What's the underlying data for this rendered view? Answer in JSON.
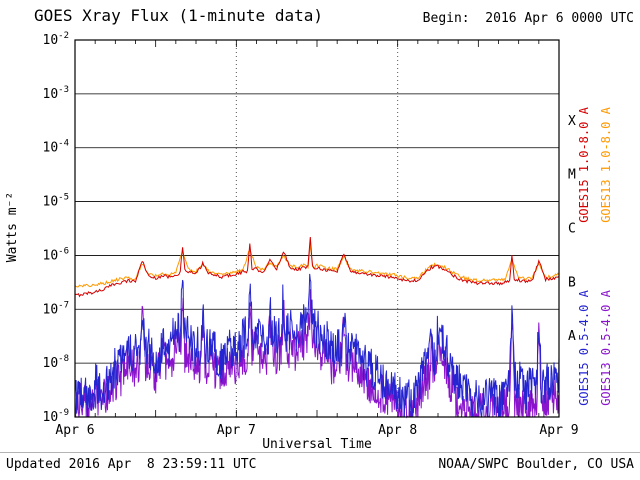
{
  "header": {
    "title": "GOES Xray Flux (1-minute data)",
    "begin_label": "Begin:  2016 Apr 6 0000 UTC"
  },
  "footer": {
    "updated": "Updated 2016 Apr  8 23:59:11 UTC",
    "source": "NOAA/SWPC Boulder, CO USA"
  },
  "chart_data": {
    "type": "line",
    "title": "GOES Xray Flux (1-minute data)",
    "xlabel": "Universal Time",
    "ylabel": "Watts m⁻²",
    "x_unit": "hours since 2016 Apr 6 0000 UTC",
    "xlim": [
      0,
      72
    ],
    "ylim_log10": [
      -9,
      -2
    ],
    "grid": {
      "horizontal": "solid",
      "day_lines": "dotted",
      "legend_position": "right"
    },
    "xticks": [
      {
        "t": 0,
        "label": "Apr 6"
      },
      {
        "t": 24,
        "label": "Apr 7"
      },
      {
        "t": 48,
        "label": "Apr 8"
      },
      {
        "t": 72,
        "label": "Apr 9"
      }
    ],
    "day_lines": [
      24,
      48
    ],
    "yticks_exp": [
      -2,
      -3,
      -4,
      -5,
      -6,
      -7,
      -8,
      -9
    ],
    "flux_classes": [
      {
        "label": "X",
        "exp_mid": -3.5
      },
      {
        "label": "M",
        "exp_mid": -4.5
      },
      {
        "label": "C",
        "exp_mid": -5.5
      },
      {
        "label": "B",
        "exp_mid": -6.5
      },
      {
        "label": "A",
        "exp_mid": -7.5
      }
    ],
    "series": [
      {
        "id": "goes15-long",
        "name": "GOES15 1.0-8.0 A",
        "color": "#d40000",
        "t0": 0,
        "t_step_hours": 1,
        "noise_decades": 0.03,
        "flux": [
          1.8e-07,
          1.9e-07,
          2e-07,
          2.1e-07,
          2.3e-07,
          2.6e-07,
          3e-07,
          3.2e-07,
          3.4e-07,
          3.3e-07,
          8e-07,
          4e-07,
          3.8e-07,
          4.2e-07,
          4e-07,
          4.5e-07,
          1.5e-06,
          5e-07,
          4.5e-07,
          7e-07,
          4.5e-07,
          4.2e-07,
          4e-07,
          4.3e-07,
          4.5e-07,
          5e-07,
          1.6e-06,
          5.5e-07,
          5e-07,
          8e-07,
          5.5e-07,
          1.2e-06,
          6e-07,
          5.5e-07,
          6e-07,
          2.1e-06,
          6e-07,
          5.5e-07,
          5.2e-07,
          5e-07,
          1.1e-06,
          5e-07,
          4.8e-07,
          4.6e-07,
          4.4e-07,
          4.2e-07,
          4.1e-07,
          4e-07,
          3.8e-07,
          3.5e-07,
          3.3e-07,
          3.5e-07,
          4.5e-07,
          6e-07,
          6.2e-07,
          5.5e-07,
          4.5e-07,
          3.8e-07,
          3.4e-07,
          3.2e-07,
          3e-07,
          3e-07,
          3.1e-07,
          3e-07,
          3.2e-07,
          1e-06,
          3.5e-07,
          3.3e-07,
          3.4e-07,
          8e-07,
          3.6e-07,
          3.8e-07,
          4e-07
        ]
      },
      {
        "id": "goes13-long",
        "name": "GOES13 1.0-8.0 A",
        "color": "#ff9900",
        "t0": 0,
        "t_step_hours": 1,
        "noise_decades": 0.03,
        "flux": [
          2.6e-07,
          2.7e-07,
          2.8e-07,
          2.9e-07,
          3e-07,
          3.2e-07,
          3.5e-07,
          3.7e-07,
          3.8e-07,
          3.7e-07,
          7e-07,
          4.4e-07,
          4.2e-07,
          4.6e-07,
          4.4e-07,
          4.9e-07,
          1.2e-06,
          5.4e-07,
          5e-07,
          6.5e-07,
          5e-07,
          4.7e-07,
          4.5e-07,
          4.8e-07,
          5e-07,
          5.5e-07,
          1.3e-06,
          6e-07,
          5.5e-07,
          7.5e-07,
          6e-07,
          1e-06,
          6.5e-07,
          6e-07,
          6.5e-07,
          1.7e-06,
          6.5e-07,
          6e-07,
          5.7e-07,
          5.5e-07,
          9.5e-07,
          5.5e-07,
          5.3e-07,
          5.1e-07,
          4.9e-07,
          4.7e-07,
          4.6e-07,
          4.5e-07,
          4.2e-07,
          3.9e-07,
          3.7e-07,
          3.9e-07,
          5e-07,
          6.5e-07,
          6.7e-07,
          6e-07,
          5e-07,
          4.2e-07,
          3.8e-07,
          3.6e-07,
          3.4e-07,
          3.4e-07,
          3.5e-07,
          3.4e-07,
          3.6e-07,
          8.5e-07,
          3.9e-07,
          3.7e-07,
          3.8e-07,
          7e-07,
          4e-07,
          4.2e-07,
          4.4e-07
        ]
      },
      {
        "id": "goes15-short",
        "name": "GOES15 0.5-4.0 A",
        "color": "#2424d0",
        "t0": 0,
        "t_step_hours": 1,
        "noise_decades": 0.4,
        "flux": [
          2e-09,
          3e-09,
          2e-09,
          4e-09,
          3e-09,
          5e-09,
          8e-09,
          1e-08,
          2e-08,
          1.5e-08,
          1.5e-07,
          2e-08,
          1e-08,
          3e-08,
          2e-08,
          4e-08,
          2.5e-07,
          3e-08,
          2e-08,
          8e-08,
          2e-08,
          1.5e-08,
          1e-08,
          2e-08,
          2e-08,
          3e-08,
          2.5e-07,
          4e-08,
          2e-08,
          1e-07,
          3e-08,
          1.8e-07,
          4e-08,
          3e-08,
          5e-08,
          3e-07,
          4e-08,
          3e-08,
          2e-08,
          2e-08,
          1.5e-07,
          2e-08,
          1.5e-08,
          1e-08,
          8e-09,
          6e-09,
          5e-09,
          4e-09,
          3e-09,
          2e-09,
          2e-09,
          4e-09,
          1e-08,
          3e-08,
          4e-08,
          2e-08,
          8e-09,
          4e-09,
          3e-09,
          2e-09,
          2e-09,
          2e-09,
          3e-09,
          2e-09,
          3e-09,
          1.2e-07,
          5e-09,
          3e-09,
          4e-09,
          6e-08,
          4e-09,
          5e-09,
          6e-09
        ]
      },
      {
        "id": "goes13-short",
        "name": "GOES13 0.5-4.0 A",
        "color": "#8a14cc",
        "t0": 0,
        "t_step_hours": 1,
        "noise_decades": 0.4,
        "flux": [
          1.5e-09,
          2e-09,
          1.5e-09,
          2.5e-09,
          2e-09,
          3e-09,
          5e-09,
          6e-09,
          1e-08,
          8e-09,
          8e-08,
          1e-08,
          6e-09,
          1.5e-08,
          1e-08,
          2e-08,
          1.2e-07,
          1.5e-08,
          1e-08,
          4e-08,
          1e-08,
          8e-09,
          6e-09,
          1e-08,
          1e-08,
          1.5e-08,
          1.2e-07,
          2e-08,
          1e-08,
          5e-08,
          1.5e-08,
          9e-08,
          2e-08,
          1.5e-08,
          2.5e-08,
          1.5e-07,
          2e-08,
          1.5e-08,
          1e-08,
          1e-08,
          7e-08,
          1e-08,
          8e-09,
          5e-09,
          4e-09,
          3e-09,
          2.5e-09,
          2e-09,
          1.5e-09,
          1.2e-09,
          1.2e-09,
          2e-09,
          5e-09,
          1.5e-08,
          2e-08,
          1e-08,
          4e-09,
          2e-09,
          1.5e-09,
          1.2e-09,
          1.2e-09,
          1.2e-09,
          1.5e-09,
          1.2e-09,
          1.5e-09,
          6e-08,
          2.5e-09,
          1.5e-09,
          2e-09,
          3e-08,
          2e-09,
          2.5e-09,
          3e-09
        ]
      }
    ]
  }
}
